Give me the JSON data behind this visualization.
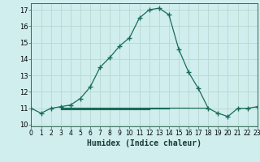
{
  "xlabel": "Humidex (Indice chaleur)",
  "bg_color": "#d0eeee",
  "grid_color_major": "#b8d8d0",
  "grid_color_minor": "#c8e4e0",
  "line_color": "#1a6b5a",
  "x_main": [
    0,
    1,
    2,
    3,
    4,
    5,
    6,
    7,
    8,
    9,
    10,
    11,
    12,
    13,
    14,
    15,
    16,
    17,
    18,
    19,
    20,
    21,
    22,
    23
  ],
  "y_main": [
    11.0,
    10.7,
    11.0,
    11.1,
    11.2,
    11.6,
    12.3,
    13.5,
    14.1,
    14.8,
    15.3,
    16.5,
    17.0,
    17.1,
    16.7,
    14.6,
    13.2,
    12.2,
    11.0,
    10.7,
    10.5,
    11.0,
    11.0,
    11.1
  ],
  "flat_lines": [
    {
      "x": [
        3,
        18
      ],
      "y": [
        11.05,
        11.05
      ]
    },
    {
      "x": [
        3,
        16
      ],
      "y": [
        11.02,
        11.02
      ]
    },
    {
      "x": [
        3,
        14
      ],
      "y": [
        10.98,
        10.98
      ]
    },
    {
      "x": [
        3,
        12
      ],
      "y": [
        10.95,
        10.95
      ]
    }
  ],
  "xlim": [
    0,
    23
  ],
  "ylim": [
    9.9,
    17.4
  ],
  "yticks": [
    10,
    11,
    12,
    13,
    14,
    15,
    16,
    17
  ],
  "xticks": [
    0,
    1,
    2,
    3,
    4,
    5,
    6,
    7,
    8,
    9,
    10,
    11,
    12,
    13,
    14,
    15,
    16,
    17,
    18,
    19,
    20,
    21,
    22,
    23
  ],
  "tick_fontsize": 6,
  "xlabel_fontsize": 7
}
